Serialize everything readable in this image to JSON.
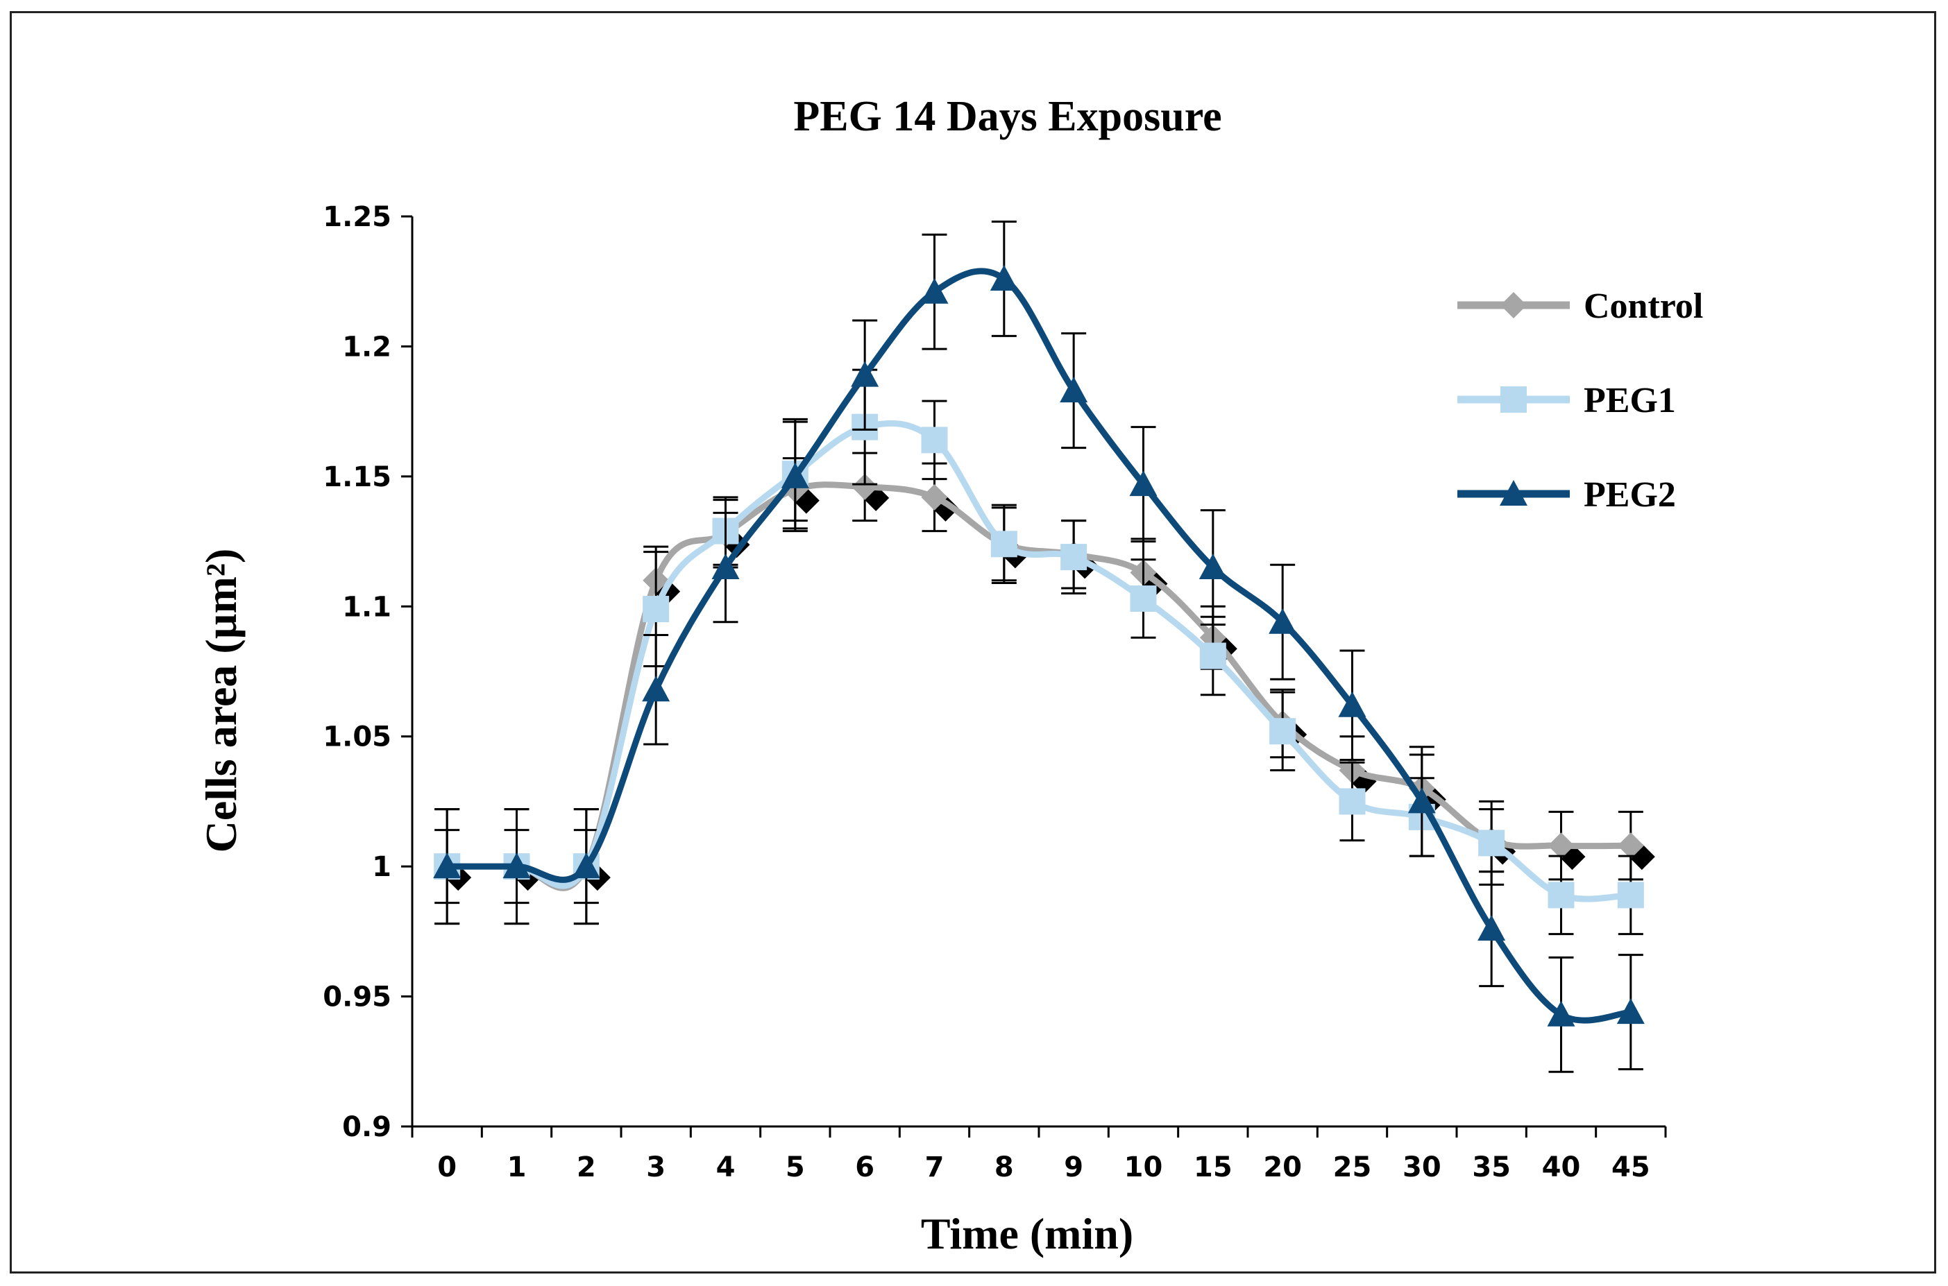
{
  "chart_data": {
    "type": "line",
    "title": "PEG 14 Days Exposure",
    "xlabel": "Time (min)",
    "ylabel": "Cells area (µm²)",
    "categories": [
      "0",
      "1",
      "2",
      "3",
      "4",
      "5",
      "6",
      "7",
      "8",
      "9",
      "10",
      "15",
      "20",
      "25",
      "30",
      "35",
      "40",
      "45"
    ],
    "ylim": [
      0.9,
      1.25
    ],
    "yticks": [
      "0.9",
      "0.95",
      "1",
      "1.05",
      "1.1",
      "1.15",
      "1.2",
      "1.25"
    ],
    "grid": false,
    "legend_position": "top-right",
    "series": [
      {
        "name": "Control",
        "color": "#a6a6a6",
        "marker": "diamond",
        "values": [
          1.0,
          1.0,
          1.0,
          1.11,
          1.128,
          1.145,
          1.146,
          1.142,
          1.124,
          1.12,
          1.113,
          1.088,
          1.055,
          1.037,
          1.03,
          1.01,
          1.008,
          1.008
        ],
        "errors": [
          0.014,
          0.014,
          0.014,
          0.013,
          0.013,
          0.012,
          0.013,
          0.013,
          0.014,
          0.013,
          0.013,
          0.012,
          0.013,
          0.013,
          0.013,
          0.012,
          0.013,
          0.013
        ]
      },
      {
        "name": "PEG1",
        "color": "#b7d9f0",
        "marker": "square",
        "values": [
          1.0,
          1.0,
          1.0,
          1.099,
          1.129,
          1.151,
          1.169,
          1.164,
          1.124,
          1.119,
          1.103,
          1.081,
          1.052,
          1.025,
          1.019,
          1.009,
          0.989,
          0.989
        ],
        "errors": [
          0.022,
          0.022,
          0.022,
          0.022,
          0.013,
          0.021,
          0.022,
          0.015,
          0.015,
          0.014,
          0.015,
          0.015,
          0.015,
          0.015,
          0.015,
          0.016,
          0.015,
          0.015
        ]
      },
      {
        "name": "PEG2",
        "color": "#0d4a7a",
        "marker": "triangle",
        "values": [
          1.0,
          1.0,
          1.0,
          1.068,
          1.115,
          1.15,
          1.189,
          1.221,
          1.226,
          1.183,
          1.147,
          1.115,
          1.094,
          1.062,
          1.025,
          0.976,
          0.943,
          0.944
        ],
        "errors": [
          0.022,
          0.022,
          0.022,
          0.021,
          0.021,
          0.021,
          0.021,
          0.022,
          0.022,
          0.022,
          0.022,
          0.022,
          0.022,
          0.021,
          0.021,
          0.022,
          0.022,
          0.022
        ]
      }
    ]
  }
}
